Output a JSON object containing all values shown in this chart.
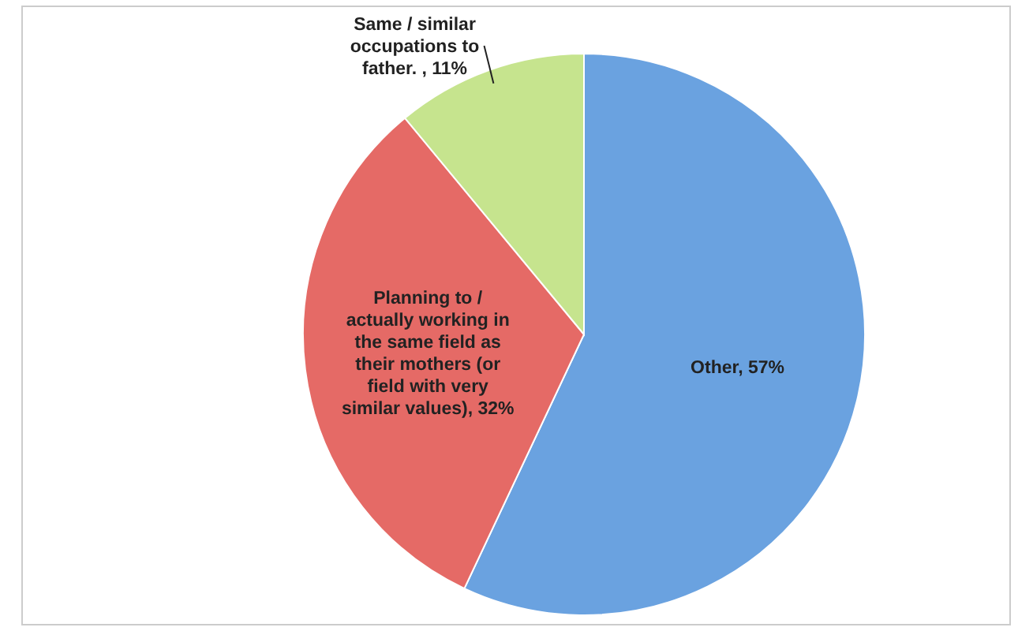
{
  "chart_data": {
    "type": "pie",
    "categories": [
      "Other",
      "Planning to / actually working in the same field as their mothers (or field with very similar values)",
      "Same / similar occupations to father. "
    ],
    "values": [
      57,
      32,
      11
    ],
    "colors": [
      "#6aa2e0",
      "#e56a66",
      "#c6e48e"
    ],
    "value_labels": [
      "57%",
      "32%",
      "11%"
    ]
  }
}
